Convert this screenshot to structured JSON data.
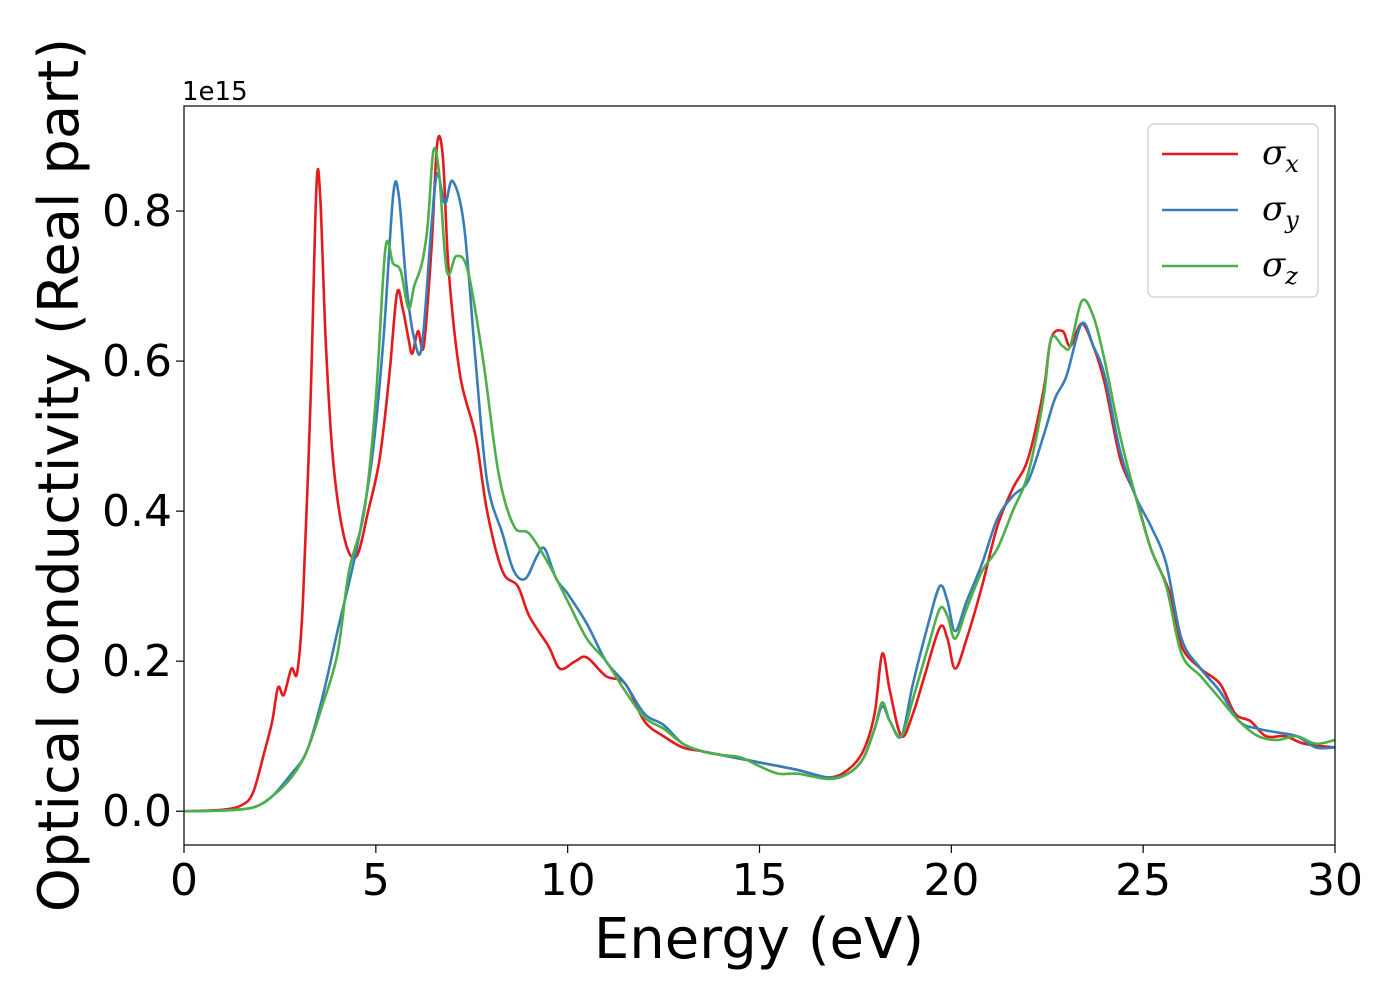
{
  "chart_data": {
    "type": "line",
    "title": "",
    "xlabel": "Energy (eV)",
    "ylabel": "Optical conductivity (Real part)",
    "y_offset_label": "1e15",
    "xlim": [
      0,
      30
    ],
    "ylim": [
      -0.045,
      0.94
    ],
    "xticks": [
      0,
      5,
      10,
      15,
      20,
      25,
      30
    ],
    "xtick_labels": [
      "0",
      "5",
      "10",
      "15",
      "20",
      "25",
      "30"
    ],
    "yticks": [
      0.0,
      0.2,
      0.4,
      0.6,
      0.8
    ],
    "ytick_labels": [
      "0.0",
      "0.2",
      "0.4",
      "0.6",
      "0.8"
    ],
    "grid": false,
    "legend_position": "top-right",
    "series": [
      {
        "name": "σx",
        "base": "σ",
        "sub": "x",
        "color": "#e41a1c",
        "points": [
          [
            0,
            0
          ],
          [
            1,
            0.002
          ],
          [
            1.5,
            0.008
          ],
          [
            1.8,
            0.025
          ],
          [
            2.1,
            0.08
          ],
          [
            2.3,
            0.12
          ],
          [
            2.45,
            0.165
          ],
          [
            2.6,
            0.155
          ],
          [
            2.8,
            0.19
          ],
          [
            2.95,
            0.185
          ],
          [
            3.1,
            0.28
          ],
          [
            3.3,
            0.55
          ],
          [
            3.45,
            0.83
          ],
          [
            3.55,
            0.82
          ],
          [
            3.7,
            0.62
          ],
          [
            3.9,
            0.46
          ],
          [
            4.2,
            0.36
          ],
          [
            4.5,
            0.34
          ],
          [
            4.8,
            0.4
          ],
          [
            5.1,
            0.47
          ],
          [
            5.35,
            0.58
          ],
          [
            5.55,
            0.69
          ],
          [
            5.7,
            0.67
          ],
          [
            5.85,
            0.63
          ],
          [
            5.95,
            0.61
          ],
          [
            6.1,
            0.64
          ],
          [
            6.25,
            0.62
          ],
          [
            6.45,
            0.75
          ],
          [
            6.6,
            0.89
          ],
          [
            6.75,
            0.87
          ],
          [
            6.9,
            0.72
          ],
          [
            7.2,
            0.58
          ],
          [
            7.6,
            0.5
          ],
          [
            7.9,
            0.4
          ],
          [
            8.3,
            0.32
          ],
          [
            8.7,
            0.3
          ],
          [
            9.0,
            0.26
          ],
          [
            9.5,
            0.22
          ],
          [
            9.8,
            0.19
          ],
          [
            10.2,
            0.2
          ],
          [
            10.5,
            0.205
          ],
          [
            11.0,
            0.18
          ],
          [
            11.5,
            0.17
          ],
          [
            12.0,
            0.12
          ],
          [
            12.5,
            0.1
          ],
          [
            13.0,
            0.085
          ],
          [
            13.5,
            0.08
          ],
          [
            14.0,
            0.075
          ],
          [
            14.5,
            0.07
          ],
          [
            15.0,
            0.065
          ],
          [
            16.0,
            0.055
          ],
          [
            16.8,
            0.045
          ],
          [
            17.3,
            0.055
          ],
          [
            17.7,
            0.08
          ],
          [
            18.0,
            0.13
          ],
          [
            18.2,
            0.21
          ],
          [
            18.4,
            0.16
          ],
          [
            18.7,
            0.1
          ],
          [
            19.0,
            0.13
          ],
          [
            19.3,
            0.18
          ],
          [
            19.7,
            0.245
          ],
          [
            19.9,
            0.23
          ],
          [
            20.1,
            0.19
          ],
          [
            20.4,
            0.23
          ],
          [
            20.8,
            0.3
          ],
          [
            21.2,
            0.38
          ],
          [
            21.6,
            0.43
          ],
          [
            22.0,
            0.47
          ],
          [
            22.4,
            0.56
          ],
          [
            22.6,
            0.63
          ],
          [
            22.9,
            0.64
          ],
          [
            23.1,
            0.62
          ],
          [
            23.4,
            0.65
          ],
          [
            23.7,
            0.62
          ],
          [
            24.0,
            0.57
          ],
          [
            24.4,
            0.47
          ],
          [
            24.8,
            0.42
          ],
          [
            25.2,
            0.35
          ],
          [
            25.7,
            0.29
          ],
          [
            26.0,
            0.22
          ],
          [
            26.5,
            0.19
          ],
          [
            27.0,
            0.17
          ],
          [
            27.4,
            0.13
          ],
          [
            27.8,
            0.12
          ],
          [
            28.2,
            0.1
          ],
          [
            28.7,
            0.1
          ],
          [
            29.2,
            0.09
          ],
          [
            30,
            0.085
          ]
        ]
      },
      {
        "name": "σy",
        "base": "σ",
        "sub": "y",
        "color": "#377eb8",
        "points": [
          [
            0,
            0
          ],
          [
            1,
            0.001
          ],
          [
            1.8,
            0.005
          ],
          [
            2.3,
            0.02
          ],
          [
            2.8,
            0.05
          ],
          [
            3.2,
            0.08
          ],
          [
            3.6,
            0.15
          ],
          [
            4.0,
            0.24
          ],
          [
            4.5,
            0.35
          ],
          [
            4.9,
            0.47
          ],
          [
            5.2,
            0.63
          ],
          [
            5.45,
            0.82
          ],
          [
            5.6,
            0.82
          ],
          [
            5.8,
            0.7
          ],
          [
            6.0,
            0.63
          ],
          [
            6.2,
            0.62
          ],
          [
            6.45,
            0.78
          ],
          [
            6.6,
            0.85
          ],
          [
            6.8,
            0.81
          ],
          [
            7.0,
            0.84
          ],
          [
            7.3,
            0.78
          ],
          [
            7.6,
            0.6
          ],
          [
            7.9,
            0.44
          ],
          [
            8.3,
            0.37
          ],
          [
            8.6,
            0.32
          ],
          [
            8.9,
            0.31
          ],
          [
            9.2,
            0.34
          ],
          [
            9.4,
            0.35
          ],
          [
            9.7,
            0.31
          ],
          [
            10.0,
            0.29
          ],
          [
            10.5,
            0.25
          ],
          [
            11.0,
            0.2
          ],
          [
            11.5,
            0.17
          ],
          [
            12.0,
            0.13
          ],
          [
            12.5,
            0.115
          ],
          [
            13.0,
            0.09
          ],
          [
            13.5,
            0.08
          ],
          [
            14.0,
            0.075
          ],
          [
            14.5,
            0.07
          ],
          [
            15.0,
            0.065
          ],
          [
            16.0,
            0.055
          ],
          [
            16.8,
            0.045
          ],
          [
            17.3,
            0.05
          ],
          [
            17.7,
            0.07
          ],
          [
            18.0,
            0.11
          ],
          [
            18.2,
            0.14
          ],
          [
            18.4,
            0.12
          ],
          [
            18.7,
            0.1
          ],
          [
            19.0,
            0.17
          ],
          [
            19.4,
            0.25
          ],
          [
            19.7,
            0.3
          ],
          [
            19.9,
            0.28
          ],
          [
            20.1,
            0.24
          ],
          [
            20.4,
            0.28
          ],
          [
            20.8,
            0.33
          ],
          [
            21.2,
            0.39
          ],
          [
            21.6,
            0.42
          ],
          [
            22.0,
            0.44
          ],
          [
            22.4,
            0.5
          ],
          [
            22.7,
            0.55
          ],
          [
            23.0,
            0.58
          ],
          [
            23.4,
            0.65
          ],
          [
            23.7,
            0.62
          ],
          [
            24.0,
            0.58
          ],
          [
            24.4,
            0.48
          ],
          [
            24.8,
            0.42
          ],
          [
            25.2,
            0.38
          ],
          [
            25.6,
            0.33
          ],
          [
            26.0,
            0.23
          ],
          [
            26.5,
            0.19
          ],
          [
            27.0,
            0.16
          ],
          [
            27.5,
            0.12
          ],
          [
            28.0,
            0.11
          ],
          [
            28.5,
            0.105
          ],
          [
            29.0,
            0.1
          ],
          [
            29.5,
            0.085
          ],
          [
            30,
            0.085
          ]
        ]
      },
      {
        "name": "σz",
        "base": "σ",
        "sub": "z",
        "color": "#4daf4a",
        "points": [
          [
            0,
            0
          ],
          [
            1,
            0.001
          ],
          [
            1.8,
            0.005
          ],
          [
            2.3,
            0.02
          ],
          [
            2.8,
            0.045
          ],
          [
            3.2,
            0.08
          ],
          [
            3.6,
            0.14
          ],
          [
            4.0,
            0.21
          ],
          [
            4.3,
            0.32
          ],
          [
            4.7,
            0.4
          ],
          [
            5.0,
            0.55
          ],
          [
            5.25,
            0.75
          ],
          [
            5.45,
            0.73
          ],
          [
            5.65,
            0.72
          ],
          [
            5.85,
            0.67
          ],
          [
            6.0,
            0.7
          ],
          [
            6.2,
            0.73
          ],
          [
            6.35,
            0.78
          ],
          [
            6.5,
            0.88
          ],
          [
            6.65,
            0.85
          ],
          [
            6.85,
            0.72
          ],
          [
            7.1,
            0.74
          ],
          [
            7.4,
            0.72
          ],
          [
            7.8,
            0.6
          ],
          [
            8.2,
            0.45
          ],
          [
            8.6,
            0.38
          ],
          [
            9.0,
            0.37
          ],
          [
            9.5,
            0.33
          ],
          [
            10.0,
            0.28
          ],
          [
            10.5,
            0.23
          ],
          [
            11.0,
            0.2
          ],
          [
            11.5,
            0.16
          ],
          [
            12.0,
            0.125
          ],
          [
            12.5,
            0.11
          ],
          [
            13.0,
            0.09
          ],
          [
            13.5,
            0.08
          ],
          [
            14.0,
            0.075
          ],
          [
            14.5,
            0.072
          ],
          [
            15.0,
            0.06
          ],
          [
            15.5,
            0.05
          ],
          [
            16.0,
            0.05
          ],
          [
            16.8,
            0.043
          ],
          [
            17.3,
            0.05
          ],
          [
            17.7,
            0.07
          ],
          [
            18.0,
            0.11
          ],
          [
            18.2,
            0.145
          ],
          [
            18.4,
            0.12
          ],
          [
            18.7,
            0.1
          ],
          [
            19.0,
            0.15
          ],
          [
            19.4,
            0.22
          ],
          [
            19.7,
            0.27
          ],
          [
            19.9,
            0.26
          ],
          [
            20.1,
            0.23
          ],
          [
            20.4,
            0.27
          ],
          [
            20.8,
            0.32
          ],
          [
            21.2,
            0.35
          ],
          [
            21.6,
            0.4
          ],
          [
            22.0,
            0.45
          ],
          [
            22.4,
            0.55
          ],
          [
            22.6,
            0.63
          ],
          [
            22.9,
            0.62
          ],
          [
            23.1,
            0.62
          ],
          [
            23.4,
            0.68
          ],
          [
            23.7,
            0.66
          ],
          [
            24.0,
            0.6
          ],
          [
            24.4,
            0.5
          ],
          [
            24.8,
            0.42
          ],
          [
            25.2,
            0.35
          ],
          [
            25.6,
            0.3
          ],
          [
            26.0,
            0.21
          ],
          [
            26.5,
            0.18
          ],
          [
            27.0,
            0.15
          ],
          [
            27.5,
            0.12
          ],
          [
            28.0,
            0.1
          ],
          [
            28.5,
            0.095
          ],
          [
            29.0,
            0.1
          ],
          [
            29.5,
            0.09
          ],
          [
            30,
            0.095
          ]
        ]
      }
    ]
  }
}
